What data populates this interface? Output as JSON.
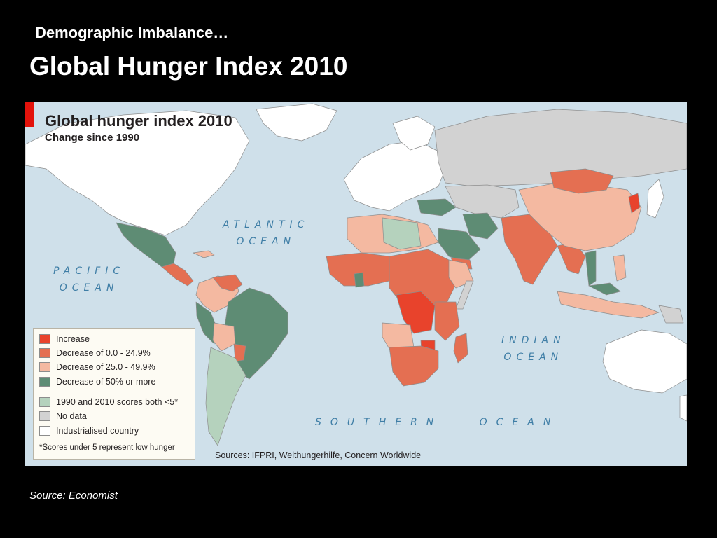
{
  "slide": {
    "subtitle": "Demographic Imbalance…",
    "title": "Global Hunger Index 2010",
    "source": "Source: Economist"
  },
  "map": {
    "title": "Global hunger index 2010",
    "subtitle": "Change since 1990",
    "sources": "Sources: IFPRI, Welthungerhilfe, Concern Worldwide",
    "oceans": [
      {
        "name": "atlantic",
        "label": "ATLANTIC\nOCEAN"
      },
      {
        "name": "pacific",
        "label": "PACIFIC\nOCEAN"
      },
      {
        "name": "indian",
        "label": "INDIAN\nOCEAN"
      },
      {
        "name": "southern",
        "label": "SOUTHERN   OCEAN"
      }
    ],
    "legend": {
      "items": [
        {
          "label": "Increase",
          "color": "#e8432c"
        },
        {
          "label": "Decrease of 0.0 - 24.9%",
          "color": "#e46f52"
        },
        {
          "label": "Decrease of 25.0 - 49.9%",
          "color": "#f4b9a1"
        },
        {
          "label": "Decrease of 50% or more",
          "color": "#5e8c74"
        },
        {
          "label": "1990 and 2010 scores both <5*",
          "color": "#b5d2bd"
        },
        {
          "label": "No data",
          "color": "#d2d2d2"
        },
        {
          "label": "Industrialised country",
          "color": "#ffffff"
        }
      ],
      "note": "*Scores under 5 represent low hunger"
    },
    "colors": {
      "ocean": "#cfe0ea",
      "increase": "#e8432c",
      "decrease_0_25": "#e46f52",
      "decrease_25_50": "#f4b9a1",
      "decrease_50_plus": "#5e8c74",
      "low_both": "#b5d2bd",
      "no_data": "#d2d2d2",
      "industrialised": "#ffffff"
    }
  }
}
